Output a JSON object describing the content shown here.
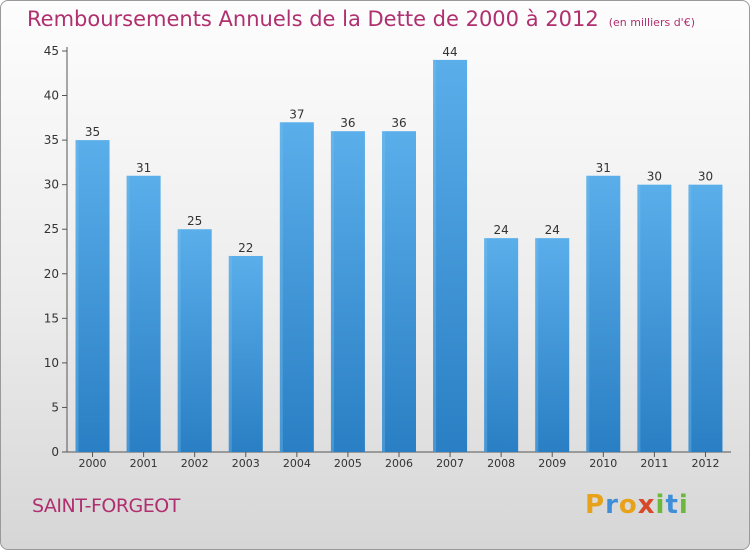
{
  "header": {
    "title": "Remboursements Annuels de la Dette de 2000 à 2012",
    "subtitle": "(en milliers d'€)"
  },
  "footer": {
    "commune": "SAINT-FORGEOT",
    "logo_text": "Proxiti",
    "logo_letters": [
      {
        "ch": "P",
        "color": "#e8a21a"
      },
      {
        "ch": "r",
        "color": "#3f8fd8"
      },
      {
        "ch": "o",
        "color": "#e8a21a"
      },
      {
        "ch": "x",
        "color": "#d64a2a"
      },
      {
        "ch": "i",
        "color": "#6cb83a"
      },
      {
        "ch": "t",
        "color": "#3f8fd8"
      },
      {
        "ch": "i",
        "color": "#6cb83a"
      }
    ]
  },
  "chart_data": {
    "type": "bar",
    "title": "Remboursements Annuels de la Dette de 2000 à 2012",
    "subtitle": "(en milliers d'€)",
    "categories": [
      "2000",
      "2001",
      "2002",
      "2003",
      "2004",
      "2005",
      "2006",
      "2007",
      "2008",
      "2009",
      "2010",
      "2011",
      "2012"
    ],
    "values": [
      35,
      31,
      25,
      22,
      37,
      36,
      36,
      44,
      24,
      24,
      31,
      30,
      30
    ],
    "ylim": [
      0,
      45
    ],
    "yticks": [
      0,
      5,
      10,
      15,
      20,
      25,
      30,
      35,
      40,
      45
    ],
    "grid": false,
    "data_labels": true,
    "bar_color": "#4a9fe0"
  }
}
